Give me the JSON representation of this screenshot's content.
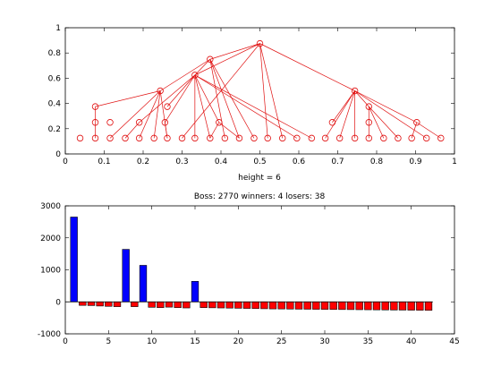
{
  "chart_data": [
    {
      "type": "scatter",
      "description": "tree",
      "xlabel": "height = 6",
      "xlim": [
        0,
        1
      ],
      "ylim": [
        0,
        1
      ],
      "xticks": [
        0,
        0.1,
        0.2,
        0.3,
        0.4,
        0.5,
        0.6,
        0.7,
        0.8,
        0.9,
        1
      ],
      "yticks": [
        0,
        0.2,
        0.4,
        0.6,
        0.8,
        1
      ],
      "color": "#e01010",
      "nodes": [
        {
          "x": 0.5,
          "y": 0.875
        },
        {
          "x": 0.372,
          "y": 0.75
        },
        {
          "x": 0.333,
          "y": 0.625
        },
        {
          "x": 0.744,
          "y": 0.5
        },
        {
          "x": 0.244,
          "y": 0.5
        },
        {
          "x": 0.903,
          "y": 0.25
        },
        {
          "x": 0.077,
          "y": 0.375
        },
        {
          "x": 0.262,
          "y": 0.375
        },
        {
          "x": 0.78,
          "y": 0.375
        },
        {
          "x": 0.077,
          "y": 0.25
        },
        {
          "x": 0.115,
          "y": 0.25
        },
        {
          "x": 0.19,
          "y": 0.25
        },
        {
          "x": 0.256,
          "y": 0.25
        },
        {
          "x": 0.395,
          "y": 0.25
        },
        {
          "x": 0.686,
          "y": 0.25
        },
        {
          "x": 0.78,
          "y": 0.25
        },
        {
          "x": 0.038,
          "y": 0.125
        },
        {
          "x": 0.077,
          "y": 0.125
        },
        {
          "x": 0.115,
          "y": 0.125
        },
        {
          "x": 0.154,
          "y": 0.125
        },
        {
          "x": 0.19,
          "y": 0.125
        },
        {
          "x": 0.228,
          "y": 0.125
        },
        {
          "x": 0.262,
          "y": 0.125
        },
        {
          "x": 0.3,
          "y": 0.125
        },
        {
          "x": 0.333,
          "y": 0.125
        },
        {
          "x": 0.372,
          "y": 0.125
        },
        {
          "x": 0.41,
          "y": 0.125
        },
        {
          "x": 0.447,
          "y": 0.125
        },
        {
          "x": 0.485,
          "y": 0.125
        },
        {
          "x": 0.52,
          "y": 0.125
        },
        {
          "x": 0.558,
          "y": 0.125
        },
        {
          "x": 0.595,
          "y": 0.125
        },
        {
          "x": 0.633,
          "y": 0.125
        },
        {
          "x": 0.668,
          "y": 0.125
        },
        {
          "x": 0.705,
          "y": 0.125
        },
        {
          "x": 0.744,
          "y": 0.125
        },
        {
          "x": 0.78,
          "y": 0.125
        },
        {
          "x": 0.818,
          "y": 0.125
        },
        {
          "x": 0.855,
          "y": 0.125
        },
        {
          "x": 0.89,
          "y": 0.125
        },
        {
          "x": 0.928,
          "y": 0.125
        },
        {
          "x": 0.965,
          "y": 0.125
        }
      ],
      "edges": [
        [
          0,
          1
        ],
        [
          0,
          2
        ],
        [
          0,
          3
        ],
        [
          0,
          23
        ],
        [
          0,
          29
        ],
        [
          0,
          30
        ],
        [
          1,
          2
        ],
        [
          1,
          4
        ],
        [
          1,
          26
        ],
        [
          1,
          27
        ],
        [
          1,
          28
        ],
        [
          2,
          7
        ],
        [
          2,
          12
        ],
        [
          2,
          13
        ],
        [
          2,
          24
        ],
        [
          2,
          25
        ],
        [
          2,
          31
        ],
        [
          2,
          32
        ],
        [
          2,
          11
        ],
        [
          4,
          6
        ],
        [
          4,
          18
        ],
        [
          4,
          20
        ],
        [
          4,
          21
        ],
        [
          4,
          22
        ],
        [
          6,
          9
        ],
        [
          9,
          17
        ],
        [
          11,
          19
        ],
        [
          12,
          22
        ],
        [
          13,
          25
        ],
        [
          13,
          27
        ],
        [
          3,
          5
        ],
        [
          3,
          8
        ],
        [
          3,
          14
        ],
        [
          3,
          33
        ],
        [
          3,
          34
        ],
        [
          3,
          35
        ],
        [
          3,
          40
        ],
        [
          5,
          39
        ],
        [
          5,
          41
        ],
        [
          8,
          15
        ],
        [
          15,
          36
        ],
        [
          8,
          37
        ],
        [
          8,
          38
        ]
      ]
    },
    {
      "type": "bar",
      "title": "Boss: 2770 winners: 4 losers: 38",
      "xlim": [
        0,
        45
      ],
      "ylim": [
        -1000,
        3000
      ],
      "xticks": [
        0,
        5,
        10,
        15,
        20,
        25,
        30,
        35,
        40,
        45
      ],
      "yticks": [
        -1000,
        0,
        1000,
        2000,
        3000
      ],
      "winner_color": "#0000ff",
      "loser_color": "#ff0000",
      "x": [
        1,
        2,
        3,
        4,
        5,
        6,
        7,
        8,
        9,
        10,
        11,
        12,
        13,
        14,
        15,
        16,
        17,
        18,
        19,
        20,
        21,
        22,
        23,
        24,
        25,
        26,
        27,
        28,
        29,
        30,
        31,
        32,
        33,
        34,
        35,
        36,
        37,
        38,
        39,
        40,
        41,
        42
      ],
      "values": [
        2650,
        -110,
        -115,
        -130,
        -140,
        -150,
        1640,
        -150,
        1140,
        -170,
        -180,
        -165,
        -180,
        -190,
        640,
        -180,
        -185,
        -190,
        -195,
        -200,
        -205,
        -210,
        -215,
        -220,
        -222,
        -225,
        -228,
        -230,
        -233,
        -235,
        -238,
        -240,
        -242,
        -245,
        -247,
        -250,
        -252,
        -255,
        -257,
        -260,
        -262,
        -265
      ],
      "winners": [
        1,
        7,
        9,
        15
      ]
    }
  ]
}
